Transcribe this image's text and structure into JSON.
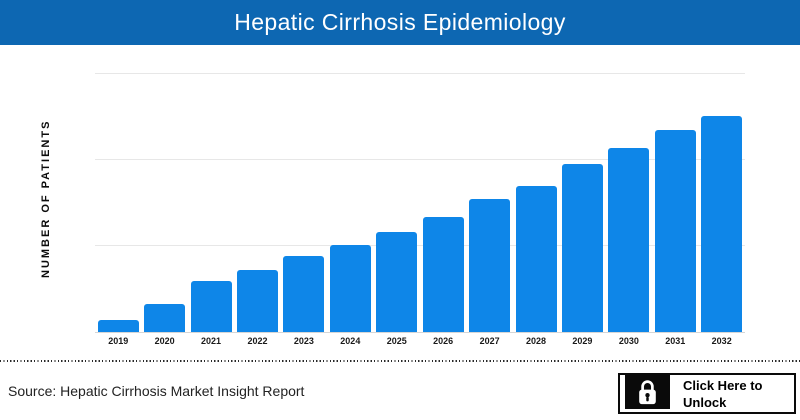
{
  "header": {
    "title": "Hepatic Cirrhosis Epidemiology"
  },
  "colors": {
    "header_bg": "#0d67b2",
    "header_text": "#ffffff",
    "bar": "#0e86e8",
    "gridline": "#e7e7e7"
  },
  "chart_data": {
    "type": "bar",
    "title": "Hepatic Cirrhosis Epidemiology",
    "categories": [
      "2019",
      "2020",
      "2021",
      "2022",
      "2023",
      "2024",
      "2025",
      "2026",
      "2027",
      "2028",
      "2029",
      "2030",
      "2031",
      "2032"
    ],
    "values": [
      0.14,
      0.32,
      0.59,
      0.72,
      0.88,
      1.01,
      1.16,
      1.34,
      1.55,
      1.7,
      1.95,
      2.14,
      2.35,
      2.51
    ],
    "xlabel": "",
    "ylabel": "NUMBER OF PATIENTS",
    "ylim": [
      0,
      3.1
    ],
    "gridline_values": [
      1,
      2,
      3
    ],
    "y_tick_labels": "none (axis values not displayed)",
    "legend": "none",
    "grid": "horizontal",
    "note": "Values estimated in gridline units (1 unit = one horizontal gridline spacing); actual patient numbers are hidden in the source image."
  },
  "footer": {
    "source": "Source: Hepatic Cirrhosis Market Insight Report",
    "unlock_label": "Click Here to Unlock"
  }
}
